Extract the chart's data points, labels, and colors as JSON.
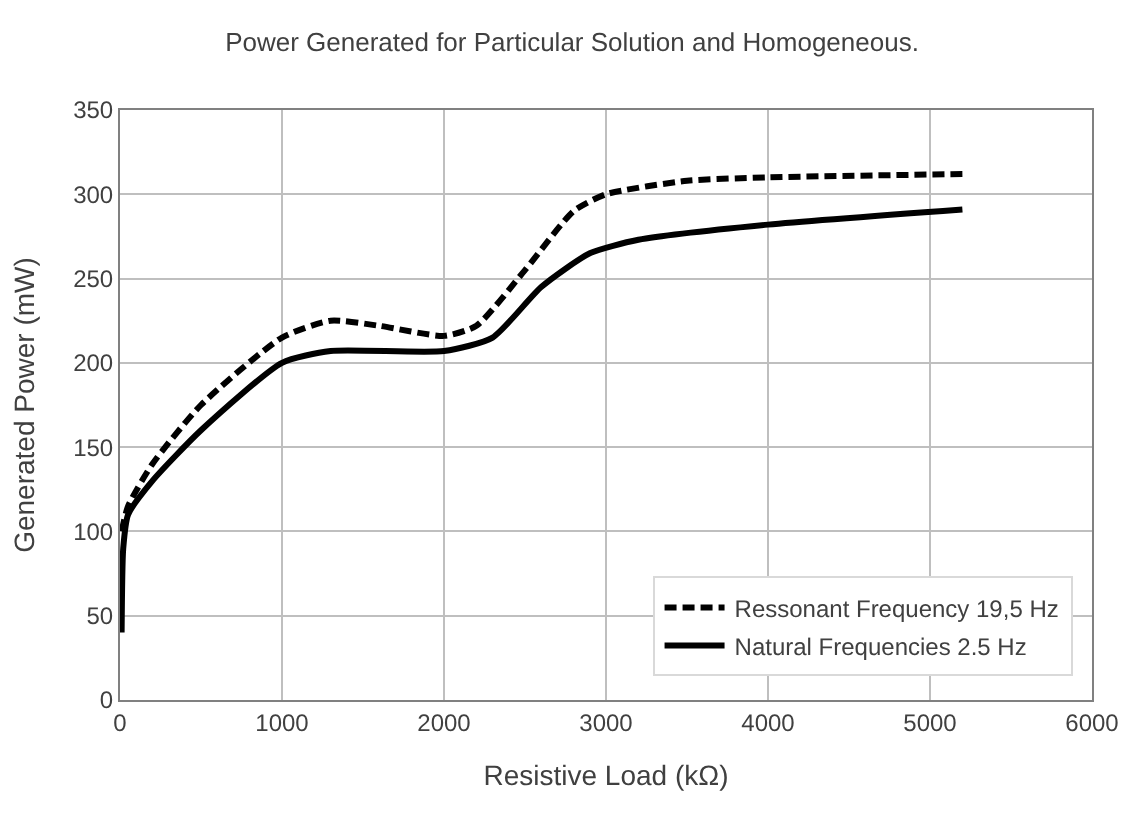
{
  "chart_data": {
    "type": "line",
    "title": "Power Generated for Particular Solution and Homogeneous.",
    "xlabel": "Resistive Load (kΩ)",
    "ylabel": "Generated Power (mW)",
    "xlim": [
      0,
      6000
    ],
    "xticks": [
      0,
      1000,
      2000,
      3000,
      4000,
      5000,
      6000
    ],
    "ylim": [
      0,
      350
    ],
    "yticks": [
      0,
      50,
      100,
      150,
      200,
      250,
      300,
      350
    ],
    "grid": true,
    "legend": "bottom right",
    "marker": "none",
    "series": [
      {
        "name": "Ressonant Frequency 19,5 Hz",
        "color": "#000000",
        "line_style": "dashed",
        "x": [
          10,
          50,
          200,
          500,
          1000,
          1300,
          1600,
          2000,
          2200,
          2500,
          2800,
          3000,
          3500,
          4000,
          5200
        ],
        "values": [
          100,
          115,
          140,
          175,
          215,
          225,
          222,
          216,
          222,
          255,
          290,
          300,
          308,
          310,
          312
        ]
      },
      {
        "name": "Natural Frequencies 2.5 Hz",
        "color": "#000000",
        "line_style": "solid",
        "x": [
          10,
          20,
          50,
          200,
          500,
          1000,
          1300,
          2000,
          2300,
          2600,
          2900,
          3200,
          4000,
          5200
        ],
        "values": [
          40,
          90,
          110,
          130,
          160,
          200,
          207,
          207,
          215,
          245,
          265,
          273,
          282,
          291
        ]
      }
    ]
  }
}
